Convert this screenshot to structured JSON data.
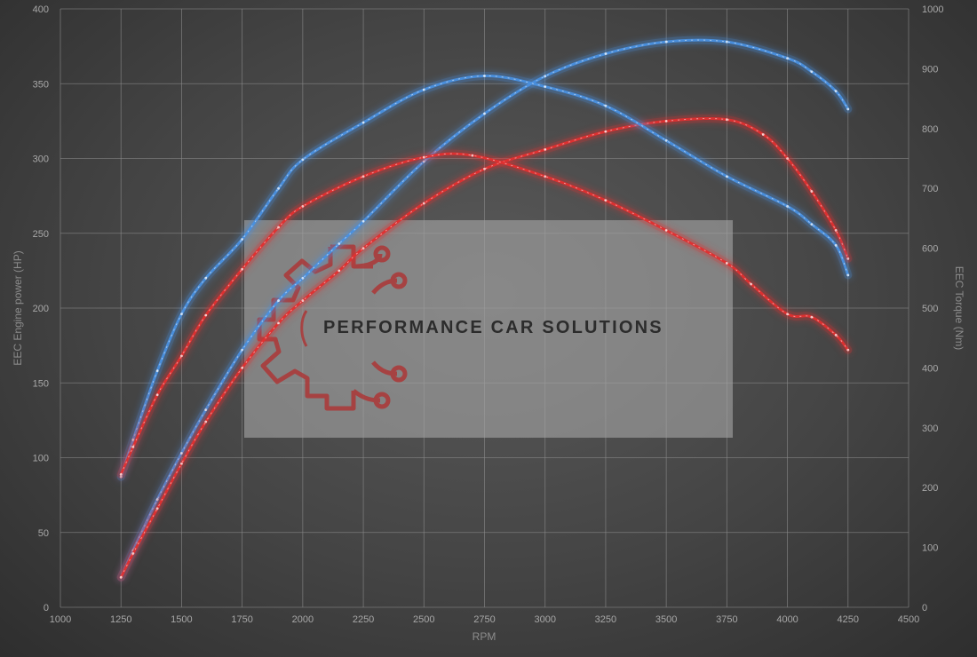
{
  "chart_data": {
    "type": "line",
    "xlabel": "RPM",
    "ylabel_left": "EEC Engine power (HP)",
    "ylabel_right": "EEC Torque (Nm)",
    "xlim": [
      1000,
      4500
    ],
    "x_ticks": [
      1000,
      1250,
      1500,
      1750,
      2000,
      2250,
      2500,
      2750,
      3000,
      3250,
      3500,
      3750,
      4000,
      4250,
      4500
    ],
    "ylim_left": [
      0,
      400
    ],
    "y_ticks_left": [
      0,
      50,
      100,
      150,
      200,
      250,
      300,
      350,
      400
    ],
    "ylim_right": [
      0,
      1000
    ],
    "y_ticks_right": [
      0,
      100,
      200,
      300,
      400,
      500,
      600,
      700,
      800,
      900,
      1000
    ],
    "grid": true,
    "series": [
      {
        "axis": "left",
        "color": "#4a90e0",
        "x": [
          1250,
          1300,
          1400,
          1500,
          1600,
          1750,
          1900,
          2000,
          2150,
          2250,
          2500,
          2750,
          3000,
          3250,
          3500,
          3750,
          4000,
          4100,
          4200,
          4250
        ],
        "y": [
          20,
          38,
          72,
          103,
          132,
          172,
          205,
          220,
          243,
          258,
          298,
          330,
          355,
          370,
          378,
          378,
          367,
          358,
          345,
          333
        ]
      },
      {
        "axis": "left",
        "color": "#e03030",
        "x": [
          1250,
          1300,
          1400,
          1500,
          1600,
          1750,
          1900,
          2000,
          2150,
          2250,
          2500,
          2750,
          3000,
          3250,
          3500,
          3750,
          3900,
          4000,
          4100,
          4200,
          4250
        ],
        "y": [
          20,
          36,
          66,
          96,
          124,
          160,
          190,
          205,
          225,
          240,
          270,
          293,
          306,
          318,
          325,
          326,
          316,
          300,
          278,
          252,
          233
        ]
      },
      {
        "axis": "right",
        "color": "#4a90e0",
        "x": [
          1250,
          1300,
          1400,
          1500,
          1600,
          1750,
          1900,
          2000,
          2250,
          2500,
          2750,
          3000,
          3250,
          3500,
          3750,
          4000,
          4100,
          4200,
          4250
        ],
        "y": [
          218,
          280,
          395,
          490,
          550,
          615,
          700,
          748,
          810,
          865,
          888,
          870,
          838,
          780,
          720,
          670,
          640,
          605,
          555
        ]
      },
      {
        "axis": "right",
        "color": "#e03030",
        "x": [
          1250,
          1300,
          1400,
          1500,
          1600,
          1750,
          1900,
          2000,
          2250,
          2500,
          2700,
          3000,
          3250,
          3500,
          3750,
          3850,
          4000,
          4100,
          4200,
          4250
        ],
        "y": [
          222,
          268,
          355,
          420,
          488,
          565,
          635,
          670,
          720,
          752,
          755,
          720,
          680,
          630,
          575,
          540,
          490,
          485,
          455,
          430
        ]
      }
    ]
  },
  "watermark": {
    "text": "PERFORMANCE CAR SOLUTIONS"
  },
  "colors": {
    "grid": "#8a8a8a",
    "ticks": "#a8a8a8",
    "watermark_box": "#a5a5a5",
    "logo_red": "#b03030"
  }
}
